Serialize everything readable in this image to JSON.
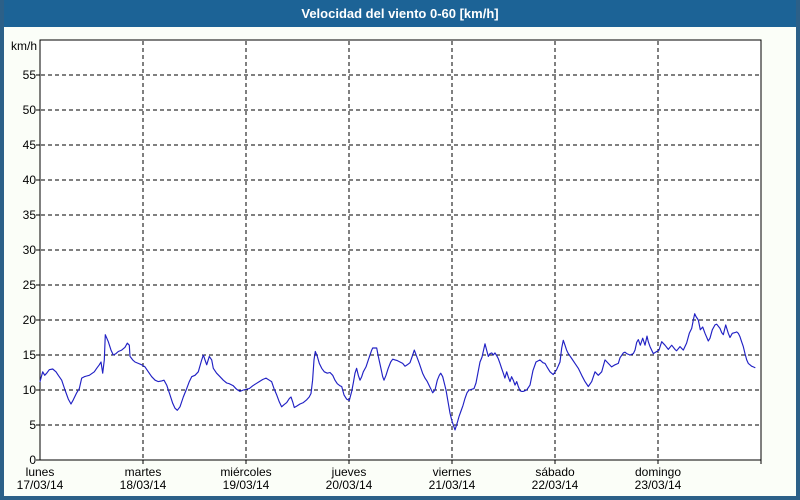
{
  "window": {
    "title": "Velocidad del viento 0-60 [km/h]",
    "colors": {
      "titlebar": "#1C6396",
      "border": "#2C6088",
      "background": "#FBFEF8",
      "plot_background": "#FFFFFF",
      "grid": "#000000",
      "text": "#000000",
      "line": "#2121C4"
    }
  },
  "chart_data": {
    "type": "line",
    "title": "Velocidad del viento 0-60 [km/h]",
    "ylabel": "km/h",
    "xlabel": "",
    "ylim": [
      0,
      60
    ],
    "y_ticks": [
      0,
      5,
      10,
      15,
      20,
      25,
      30,
      35,
      40,
      45,
      50,
      55
    ],
    "grid": "dashed",
    "legend": "none",
    "x_range_days": [
      0,
      7
    ],
    "x_axis_days": [
      {
        "name": "lunes",
        "date": "17/03/14"
      },
      {
        "name": "martes",
        "date": "18/03/14"
      },
      {
        "name": "miércoles",
        "date": "19/03/14"
      },
      {
        "name": "jueves",
        "date": "20/03/14"
      },
      {
        "name": "viernes",
        "date": "21/03/14"
      },
      {
        "name": "sábado",
        "date": "22/03/14"
      },
      {
        "name": "domingo",
        "date": "23/03/14"
      }
    ],
    "line_color": "#2121C4",
    "series": [
      {
        "unit": "km/h",
        "points": [
          [
            0.0,
            11.2
          ],
          [
            0.026,
            12.6
          ],
          [
            0.046,
            12.1
          ],
          [
            0.065,
            12.4
          ],
          [
            0.09,
            12.9
          ],
          [
            0.123,
            13.0
          ],
          [
            0.155,
            12.6
          ],
          [
            0.178,
            12.1
          ],
          [
            0.211,
            11.4
          ],
          [
            0.243,
            10.0
          ],
          [
            0.275,
            8.7
          ],
          [
            0.301,
            8.0
          ],
          [
            0.323,
            8.6
          ],
          [
            0.356,
            9.6
          ],
          [
            0.382,
            10.2
          ],
          [
            0.405,
            11.7
          ],
          [
            0.43,
            11.9
          ],
          [
            0.453,
            12.0
          ],
          [
            0.479,
            12.1
          ],
          [
            0.527,
            12.6
          ],
          [
            0.55,
            13.1
          ],
          [
            0.576,
            13.6
          ],
          [
            0.592,
            14.0
          ],
          [
            0.609,
            12.4
          ],
          [
            0.624,
            14.3
          ],
          [
            0.634,
            17.9
          ],
          [
            0.663,
            16.9
          ],
          [
            0.689,
            15.7
          ],
          [
            0.712,
            15.0
          ],
          [
            0.738,
            15.2
          ],
          [
            0.76,
            15.5
          ],
          [
            0.793,
            15.7
          ],
          [
            0.825,
            16.1
          ],
          [
            0.848,
            16.7
          ],
          [
            0.867,
            16.4
          ],
          [
            0.874,
            14.8
          ],
          [
            0.9,
            14.3
          ],
          [
            0.922,
            14.0
          ],
          [
            0.954,
            13.8
          ],
          [
            0.987,
            13.6
          ],
          [
            1.019,
            13.3
          ],
          [
            1.051,
            12.6
          ],
          [
            1.084,
            11.9
          ],
          [
            1.117,
            11.4
          ],
          [
            1.149,
            11.2
          ],
          [
            1.182,
            11.3
          ],
          [
            1.204,
            11.4
          ],
          [
            1.23,
            10.7
          ],
          [
            1.262,
            9.3
          ],
          [
            1.288,
            8.1
          ],
          [
            1.311,
            7.4
          ],
          [
            1.333,
            7.1
          ],
          [
            1.359,
            7.6
          ],
          [
            1.391,
            9.0
          ],
          [
            1.424,
            10.2
          ],
          [
            1.45,
            11.2
          ],
          [
            1.473,
            11.9
          ],
          [
            1.505,
            12.1
          ],
          [
            1.537,
            12.6
          ],
          [
            1.57,
            14.3
          ],
          [
            1.586,
            15.0
          ],
          [
            1.602,
            14.3
          ],
          [
            1.618,
            13.6
          ],
          [
            1.644,
            14.8
          ],
          [
            1.667,
            14.3
          ],
          [
            1.683,
            13.1
          ],
          [
            1.715,
            12.4
          ],
          [
            1.748,
            11.9
          ],
          [
            1.78,
            11.4
          ],
          [
            1.813,
            11.0
          ],
          [
            1.838,
            10.9
          ],
          [
            1.877,
            10.6
          ],
          [
            1.909,
            10.1
          ],
          [
            1.942,
            9.8
          ],
          [
            1.974,
            10.0
          ],
          [
            2.0,
            10.1
          ],
          [
            2.032,
            10.2
          ],
          [
            2.065,
            10.6
          ],
          [
            2.097,
            10.9
          ],
          [
            2.129,
            11.2
          ],
          [
            2.162,
            11.5
          ],
          [
            2.194,
            11.7
          ],
          [
            2.226,
            11.4
          ],
          [
            2.249,
            11.2
          ],
          [
            2.272,
            10.2
          ],
          [
            2.298,
            9.3
          ],
          [
            2.323,
            8.3
          ],
          [
            2.346,
            7.6
          ],
          [
            2.369,
            7.9
          ],
          [
            2.395,
            8.2
          ],
          [
            2.421,
            8.8
          ],
          [
            2.437,
            9.0
          ],
          [
            2.453,
            8.3
          ],
          [
            2.469,
            7.5
          ],
          [
            2.492,
            7.7
          ],
          [
            2.524,
            8.0
          ],
          [
            2.556,
            8.2
          ],
          [
            2.589,
            8.6
          ],
          [
            2.614,
            9.0
          ],
          [
            2.631,
            9.5
          ],
          [
            2.647,
            11.4
          ],
          [
            2.66,
            14.3
          ],
          [
            2.673,
            15.5
          ],
          [
            2.692,
            14.8
          ],
          [
            2.712,
            13.8
          ],
          [
            2.735,
            13.1
          ],
          [
            2.76,
            12.6
          ],
          [
            2.789,
            12.4
          ],
          [
            2.816,
            12.5
          ],
          [
            2.842,
            12.1
          ],
          [
            2.864,
            11.4
          ],
          [
            2.886,
            10.9
          ],
          [
            2.913,
            10.6
          ],
          [
            2.929,
            10.5
          ],
          [
            2.951,
            9.3
          ],
          [
            2.977,
            8.7
          ],
          [
            3.003,
            8.5
          ],
          [
            3.026,
            9.8
          ],
          [
            3.042,
            11.0
          ],
          [
            3.058,
            12.4
          ],
          [
            3.074,
            13.1
          ],
          [
            3.09,
            12.1
          ],
          [
            3.107,
            11.4
          ],
          [
            3.123,
            11.9
          ],
          [
            3.139,
            12.6
          ],
          [
            3.165,
            13.3
          ],
          [
            3.187,
            14.3
          ],
          [
            3.204,
            15.0
          ],
          [
            3.22,
            15.7
          ],
          [
            3.23,
            16.0
          ],
          [
            3.269,
            16.0
          ],
          [
            3.284,
            14.8
          ],
          [
            3.307,
            13.3
          ],
          [
            3.327,
            11.9
          ],
          [
            3.34,
            11.4
          ],
          [
            3.359,
            12.1
          ],
          [
            3.381,
            13.1
          ],
          [
            3.405,
            14.0
          ],
          [
            3.424,
            14.4
          ],
          [
            3.447,
            14.3
          ],
          [
            3.469,
            14.2
          ],
          [
            3.495,
            14.0
          ],
          [
            3.521,
            13.8
          ],
          [
            3.544,
            13.4
          ],
          [
            3.566,
            13.6
          ],
          [
            3.592,
            13.9
          ],
          [
            3.618,
            15.0
          ],
          [
            3.634,
            15.7
          ],
          [
            3.657,
            14.8
          ],
          [
            3.683,
            13.8
          ],
          [
            3.715,
            12.4
          ],
          [
            3.738,
            11.7
          ],
          [
            3.76,
            11.2
          ],
          [
            3.786,
            10.4
          ],
          [
            3.813,
            9.6
          ],
          [
            3.835,
            10.0
          ],
          [
            3.857,
            11.4
          ],
          [
            3.877,
            12.1
          ],
          [
            3.89,
            12.4
          ],
          [
            3.91,
            11.9
          ],
          [
            3.942,
            10.0
          ],
          [
            3.964,
            8.1
          ],
          [
            3.981,
            6.7
          ],
          [
            3.997,
            5.7
          ],
          [
            4.013,
            5.0
          ],
          [
            4.029,
            4.3
          ],
          [
            4.049,
            5.2
          ],
          [
            4.068,
            6.2
          ],
          [
            4.087,
            7.0
          ],
          [
            4.107,
            7.8
          ],
          [
            4.126,
            8.8
          ],
          [
            4.146,
            9.6
          ],
          [
            4.165,
            10.0
          ],
          [
            4.191,
            10.1
          ],
          [
            4.214,
            10.2
          ],
          [
            4.233,
            11.0
          ],
          [
            4.252,
            12.5
          ],
          [
            4.272,
            14.0
          ],
          [
            4.291,
            14.7
          ],
          [
            4.32,
            16.6
          ],
          [
            4.34,
            15.5
          ],
          [
            4.352,
            14.8
          ],
          [
            4.369,
            15.2
          ],
          [
            4.385,
            15.3
          ],
          [
            4.401,
            15.0
          ],
          [
            4.417,
            15.3
          ],
          [
            4.434,
            14.9
          ],
          [
            4.449,
            14.5
          ],
          [
            4.466,
            13.8
          ],
          [
            4.482,
            13.1
          ],
          [
            4.498,
            12.4
          ],
          [
            4.514,
            11.7
          ],
          [
            4.531,
            12.6
          ],
          [
            4.546,
            11.9
          ],
          [
            4.563,
            11.2
          ],
          [
            4.579,
            11.9
          ],
          [
            4.595,
            11.4
          ],
          [
            4.612,
            10.7
          ],
          [
            4.628,
            11.2
          ],
          [
            4.644,
            10.5
          ],
          [
            4.66,
            9.9
          ],
          [
            4.676,
            9.8
          ],
          [
            4.692,
            9.8
          ],
          [
            4.709,
            9.9
          ],
          [
            4.725,
            10.0
          ],
          [
            4.757,
            10.7
          ],
          [
            4.786,
            12.8
          ],
          [
            4.816,
            14.0
          ],
          [
            4.854,
            14.3
          ],
          [
            4.883,
            13.9
          ],
          [
            4.903,
            13.8
          ],
          [
            4.922,
            13.3
          ],
          [
            4.951,
            12.6
          ],
          [
            4.983,
            12.2
          ],
          [
            5.016,
            12.9
          ],
          [
            5.049,
            14.0
          ],
          [
            5.065,
            16.0
          ],
          [
            5.081,
            17.1
          ],
          [
            5.097,
            16.4
          ],
          [
            5.113,
            15.7
          ],
          [
            5.129,
            15.2
          ],
          [
            5.162,
            14.5
          ],
          [
            5.194,
            13.8
          ],
          [
            5.226,
            13.1
          ],
          [
            5.259,
            12.1
          ],
          [
            5.291,
            11.2
          ],
          [
            5.323,
            10.5
          ],
          [
            5.356,
            11.2
          ],
          [
            5.388,
            12.6
          ],
          [
            5.42,
            12.1
          ],
          [
            5.453,
            12.6
          ],
          [
            5.485,
            14.3
          ],
          [
            5.517,
            13.8
          ],
          [
            5.55,
            13.3
          ],
          [
            5.583,
            13.6
          ],
          [
            5.615,
            13.8
          ],
          [
            5.631,
            14.6
          ],
          [
            5.663,
            15.3
          ],
          [
            5.68,
            15.4
          ],
          [
            5.696,
            15.2
          ],
          [
            5.728,
            15.0
          ],
          [
            5.76,
            15.2
          ],
          [
            5.777,
            15.7
          ],
          [
            5.793,
            16.8
          ],
          [
            5.809,
            17.2
          ],
          [
            5.828,
            16.4
          ],
          [
            5.851,
            17.4
          ],
          [
            5.874,
            16.4
          ],
          [
            5.893,
            17.7
          ],
          [
            5.906,
            16.9
          ],
          [
            5.922,
            16.2
          ],
          [
            5.954,
            15.2
          ],
          [
            5.987,
            15.5
          ],
          [
            6.01,
            15.7
          ],
          [
            6.036,
            16.9
          ],
          [
            6.068,
            16.4
          ],
          [
            6.1,
            15.8
          ],
          [
            6.133,
            16.4
          ],
          [
            6.165,
            15.8
          ],
          [
            6.181,
            15.6
          ],
          [
            6.214,
            16.2
          ],
          [
            6.246,
            15.7
          ],
          [
            6.278,
            16.7
          ],
          [
            6.304,
            18.1
          ],
          [
            6.327,
            18.8
          ],
          [
            6.346,
            20.2
          ],
          [
            6.356,
            20.9
          ],
          [
            6.369,
            20.5
          ],
          [
            6.391,
            20.0
          ],
          [
            6.411,
            18.6
          ],
          [
            6.434,
            19.0
          ],
          [
            6.456,
            18.1
          ],
          [
            6.488,
            17.0
          ],
          [
            6.505,
            17.4
          ],
          [
            6.527,
            18.6
          ],
          [
            6.553,
            19.3
          ],
          [
            6.57,
            19.4
          ],
          [
            6.602,
            18.8
          ],
          [
            6.618,
            18.2
          ],
          [
            6.634,
            17.9
          ],
          [
            6.657,
            19.3
          ],
          [
            6.683,
            18.1
          ],
          [
            6.699,
            17.5
          ],
          [
            6.721,
            18.1
          ],
          [
            6.748,
            18.2
          ],
          [
            6.764,
            18.3
          ],
          [
            6.78,
            18.1
          ],
          [
            6.796,
            17.6
          ],
          [
            6.812,
            16.9
          ],
          [
            6.828,
            16.2
          ],
          [
            6.845,
            15.2
          ],
          [
            6.861,
            14.3
          ],
          [
            6.877,
            13.8
          ],
          [
            6.893,
            13.6
          ],
          [
            6.909,
            13.4
          ],
          [
            6.925,
            13.3
          ],
          [
            6.941,
            13.2
          ]
        ]
      }
    ]
  }
}
